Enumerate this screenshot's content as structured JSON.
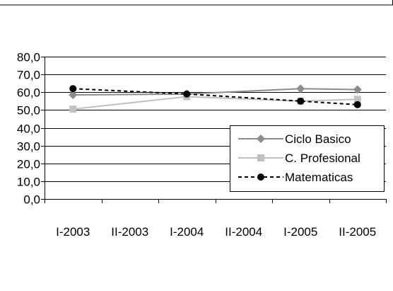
{
  "chart_data": {
    "type": "line",
    "categories": [
      "I-2003",
      "II-2003",
      "I-2004",
      "II-2004",
      "I-2005",
      "II-2005"
    ],
    "ylim": [
      0,
      80
    ],
    "ytick_labels": [
      "0,0",
      "10,0",
      "20,0",
      "30,0",
      "40,0",
      "50,0",
      "60,0",
      "70,0",
      "80,0"
    ],
    "grid": true,
    "legend_position": "right",
    "series": [
      {
        "name": "Ciclo Basico",
        "x": [
          "I-2003",
          "I-2004",
          "I-2005",
          "II-2005"
        ],
        "values": [
          58.5,
          59,
          62,
          61.5
        ],
        "color": "#8c8c8c",
        "marker": "diamond",
        "style": "solid"
      },
      {
        "name": "C. Profesional",
        "x": [
          "I-2003",
          "I-2004",
          "I-2005",
          "II-2005"
        ],
        "values": [
          50.5,
          57.5,
          55,
          56
        ],
        "color": "#c0c0c0",
        "marker": "square",
        "style": "solid"
      },
      {
        "name": "Matematicas",
        "x": [
          "I-2003",
          "I-2004",
          "I-2005",
          "II-2005"
        ],
        "values": [
          62,
          59,
          55,
          53
        ],
        "color": "#000000",
        "marker": "circle",
        "style": "dashed"
      }
    ]
  }
}
